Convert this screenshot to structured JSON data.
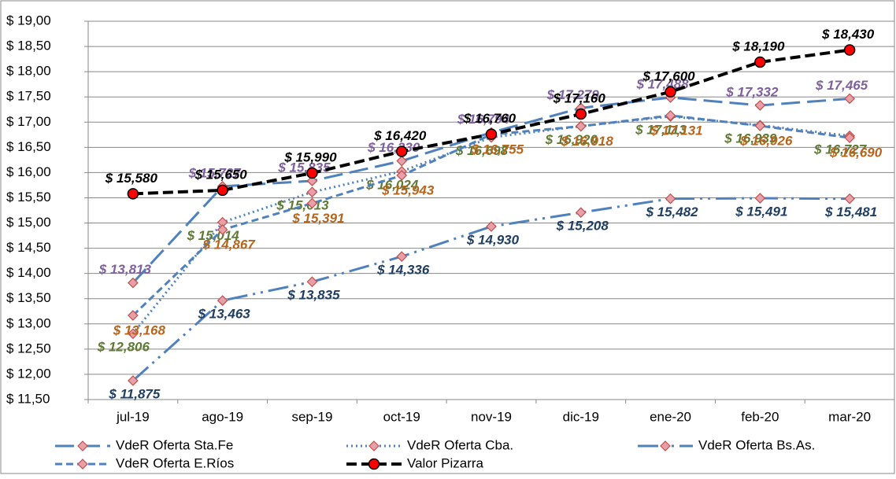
{
  "chart_data": {
    "type": "line",
    "categories": [
      "jul-19",
      "ago-19",
      "sep-19",
      "oct-19",
      "nov-19",
      "dic-19",
      "ene-20",
      "feb-20",
      "mar-20"
    ],
    "ylim": [
      11.5,
      19
    ],
    "yticks": [
      {
        "value": 11.5,
        "label": "$ 11,50"
      },
      {
        "value": 12,
        "label": "$ 12,00"
      },
      {
        "value": 12.5,
        "label": "$ 12,50"
      },
      {
        "value": 13,
        "label": "$ 13,00"
      },
      {
        "value": 13.5,
        "label": "$ 13,50"
      },
      {
        "value": 14,
        "label": "$ 14,00"
      },
      {
        "value": 14.5,
        "label": "$ 14,50"
      },
      {
        "value": 15,
        "label": "$ 15,00"
      },
      {
        "value": 15.5,
        "label": "$ 15,50"
      },
      {
        "value": 16,
        "label": "$ 16,00"
      },
      {
        "value": 16.5,
        "label": "$ 16,50"
      },
      {
        "value": 17,
        "label": "$ 17,00"
      },
      {
        "value": 17.5,
        "label": "$ 17,50"
      },
      {
        "value": 18,
        "label": "$ 18,00"
      },
      {
        "value": 18.5,
        "label": "$ 18,50"
      },
      {
        "value": 19,
        "label": "$ 19,00"
      }
    ],
    "grid": true,
    "legend": "bottom",
    "series": [
      {
        "name": "VdeR Oferta Sta.Fe",
        "color": "#4f81bd",
        "label_color": "#7f609e",
        "marker": "diamond",
        "values": [
          13.813,
          15.727,
          15.835,
          16.23,
          16.794,
          17.279,
          17.488,
          17.332,
          17.465
        ],
        "value_labels": [
          "$ 13,813",
          "$ 15,727",
          "$ 15,835",
          "$ 16,230",
          "$ 16,794",
          "$ 17,279",
          "$ 17,488",
          "$ 17,332",
          "$ 17,465"
        ]
      },
      {
        "name": "VdeR Oferta Cba.",
        "color": "#4f81bd",
        "label_color": "#5f7a33",
        "marker": "diamond",
        "values": [
          12.806,
          15.014,
          15.613,
          16.024,
          16.698,
          16.92,
          17.113,
          16.939,
          16.727
        ],
        "value_labels": [
          "$ 12,806",
          "$ 15,014",
          "$ 15,613",
          "$ 16,024",
          "$ 16,698",
          "$ 16,920",
          "$ 17,113",
          "$ 16,939",
          "$ 16,727"
        ]
      },
      {
        "name": "VdeR Oferta Bs.As.",
        "color": "#4f81bd",
        "label_color": "#1f3e63",
        "marker": "diamond",
        "values": [
          11.875,
          13.463,
          13.835,
          14.336,
          14.93,
          15.208,
          15.482,
          15.491,
          15.481
        ],
        "value_labels": [
          "$ 11,875",
          "$ 13,463",
          "$ 13,835",
          "$ 14,336",
          "$ 14,930",
          "$ 15,208",
          "$ 15,482",
          "$ 15,491",
          "$ 15,481"
        ]
      },
      {
        "name": "VdeR Oferta E.Ríos",
        "color": "#4f81bd",
        "label_color": "#b5651d",
        "marker": "diamond",
        "values": [
          13.168,
          14.867,
          15.391,
          15.943,
          16.755,
          16.918,
          17.131,
          16.926,
          16.69
        ],
        "value_labels": [
          "$ 13,168",
          "$ 14,867",
          "$ 15,391",
          "$ 15,943",
          "$ 16,755",
          "$ 16,918",
          "$ 17,131",
          "$ 16,926",
          "$ 16,690"
        ]
      },
      {
        "name": "Valor Pizarra",
        "color": "#000000",
        "label_color": "#000000",
        "marker": "circle",
        "values": [
          15.58,
          15.65,
          15.99,
          16.42,
          16.76,
          17.16,
          17.6,
          18.19,
          18.43
        ],
        "value_labels": [
          "$ 15,580",
          "$ 15,650",
          "$ 15,990",
          "$ 16,420",
          "$ 16,760",
          "$ 17,160",
          "$ 17,600",
          "$ 18,190",
          "$ 18,430"
        ]
      }
    ]
  }
}
